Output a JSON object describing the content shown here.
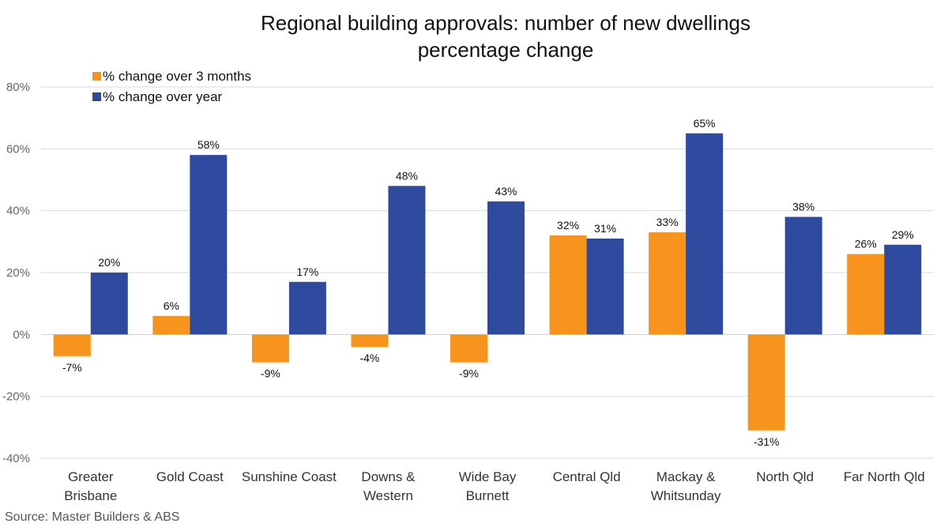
{
  "chart_data": {
    "type": "bar",
    "title": [
      "Regional building approvals: number of new dwellings",
      "percentage change"
    ],
    "categories": [
      [
        "Greater",
        "Brisbane"
      ],
      [
        "Gold Coast"
      ],
      [
        "Sunshine Coast"
      ],
      [
        "Downs &",
        "Western"
      ],
      [
        "Wide Bay",
        "Burnett"
      ],
      [
        "Central Qld"
      ],
      [
        "Mackay &",
        "Whitsunday"
      ],
      [
        "North Qld"
      ],
      [
        "Far North Qld"
      ]
    ],
    "series": [
      {
        "name": "% change over 3 months",
        "color": "#f7941d",
        "values": [
          -7,
          6,
          -9,
          -4,
          -9,
          32,
          33,
          -31,
          26
        ],
        "labels": [
          "-7%",
          "6%",
          "-9%",
          "-4%",
          "-9%",
          "32%",
          "33%",
          "-31%",
          "26%"
        ]
      },
      {
        "name": "% change over year",
        "color": "#2e4a9e",
        "values": [
          20,
          58,
          17,
          48,
          43,
          31,
          65,
          38,
          29
        ],
        "labels": [
          "20%",
          "58%",
          "17%",
          "48%",
          "43%",
          "31%",
          "65%",
          "38%",
          "29%"
        ]
      }
    ],
    "ylim": [
      -40,
      80
    ],
    "yticks": [
      -40,
      -20,
      0,
      20,
      40,
      60,
      80
    ],
    "ytick_labels": [
      "-40%",
      "-20%",
      "0%",
      "20%",
      "40%",
      "60%",
      "80%"
    ],
    "grid": true,
    "legend_position": "top-left",
    "xlabel": "",
    "ylabel": ""
  },
  "source": "Source:  Master Builders & ABS"
}
